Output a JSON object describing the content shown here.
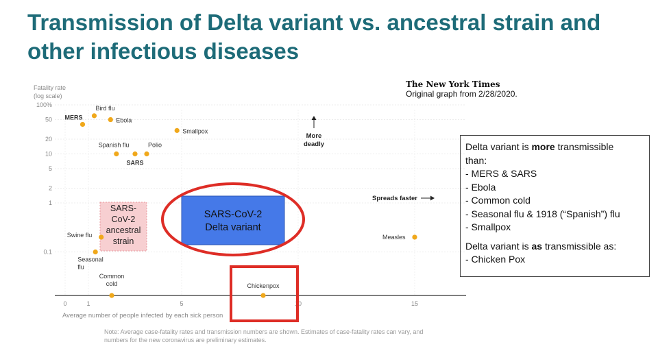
{
  "title": "Transmission of Delta variant vs. ancestral strain and other infectious diseases",
  "source": {
    "logo": "The New York Times",
    "caption": "Original graph from 2/28/2020."
  },
  "chart_data": {
    "type": "scatter",
    "ylabel_lines": [
      "Fatality rate",
      "(log scale)"
    ],
    "xlabel": "Average number of people infected by each sick person",
    "y_scale": "log",
    "ylim": [
      0.02,
      100
    ],
    "xlim": [
      -0.5,
      17
    ],
    "y_ticks": [
      "100%",
      "50",
      "20",
      "10",
      "5",
      "2",
      "1",
      "0.1"
    ],
    "y_tick_values": [
      100,
      50,
      20,
      10,
      5,
      2,
      1,
      0.1
    ],
    "x_ticks": [
      "0",
      "1",
      "5",
      "10",
      "15"
    ],
    "x_tick_values": [
      0,
      1,
      5,
      10,
      15
    ],
    "points": [
      {
        "label": "MERS",
        "x": 0.75,
        "y": 40,
        "bold": true
      },
      {
        "label": "Bird flu",
        "x": 1.25,
        "y": 60,
        "bold": false
      },
      {
        "label": "Ebola",
        "x": 1.95,
        "y": 50,
        "bold": false
      },
      {
        "label": "Smallpox",
        "x": 4.8,
        "y": 30,
        "bold": false
      },
      {
        "label": "Spanish flu",
        "x": 2.2,
        "y": 10,
        "bold": false
      },
      {
        "label": "SARS",
        "x": 3.0,
        "y": 10,
        "bold": true
      },
      {
        "label": "Polio",
        "x": 3.5,
        "y": 10,
        "bold": false
      },
      {
        "label": "Swine flu",
        "x": 1.55,
        "y": 0.2,
        "bold": false
      },
      {
        "label": "Seasonal flu",
        "x": 1.3,
        "y": 0.1,
        "bold": false
      },
      {
        "label": "Common cold",
        "x": 2.0,
        "y": 0.02,
        "bold": false
      },
      {
        "label": "Chickenpox",
        "x": 8.5,
        "y": 0.02,
        "bold": false
      },
      {
        "label": "Measles",
        "x": 15.0,
        "y": 0.2,
        "bold": false
      }
    ],
    "annotations": {
      "more_deadly": [
        "More",
        "deadly"
      ],
      "spreads_faster": "Spreads faster"
    },
    "overlays": {
      "ancestral": [
        "SARS-",
        "CoV-2",
        "ancestral",
        "strain"
      ],
      "delta": [
        "SARS-CoV-2",
        "Delta variant"
      ]
    },
    "colors": {
      "point": "#f0a81b",
      "delta_box": "#4579e8",
      "ancestral_box": "#f7cfd1",
      "highlight_red": "#de2d26"
    }
  },
  "infobox": {
    "intro_pre": "Delta variant is ",
    "intro_bold": "more",
    "intro_post": " transmissible than:",
    "items": [
      "-  MERS & SARS",
      "-  Ebola",
      "-  Common cold",
      "-  Seasonal flu & 1918 (“Spanish”) flu",
      "-  Smallpox"
    ],
    "as_pre": "Delta variant is ",
    "as_bold": "as",
    "as_post": " transmissible as:",
    "as_item": "- Chicken Pox"
  },
  "note": "Note: Average case-fatality rates and transmission numbers are shown. Estimates of case-fatality rates can vary, and numbers for the new coronavirus are preliminary estimates."
}
